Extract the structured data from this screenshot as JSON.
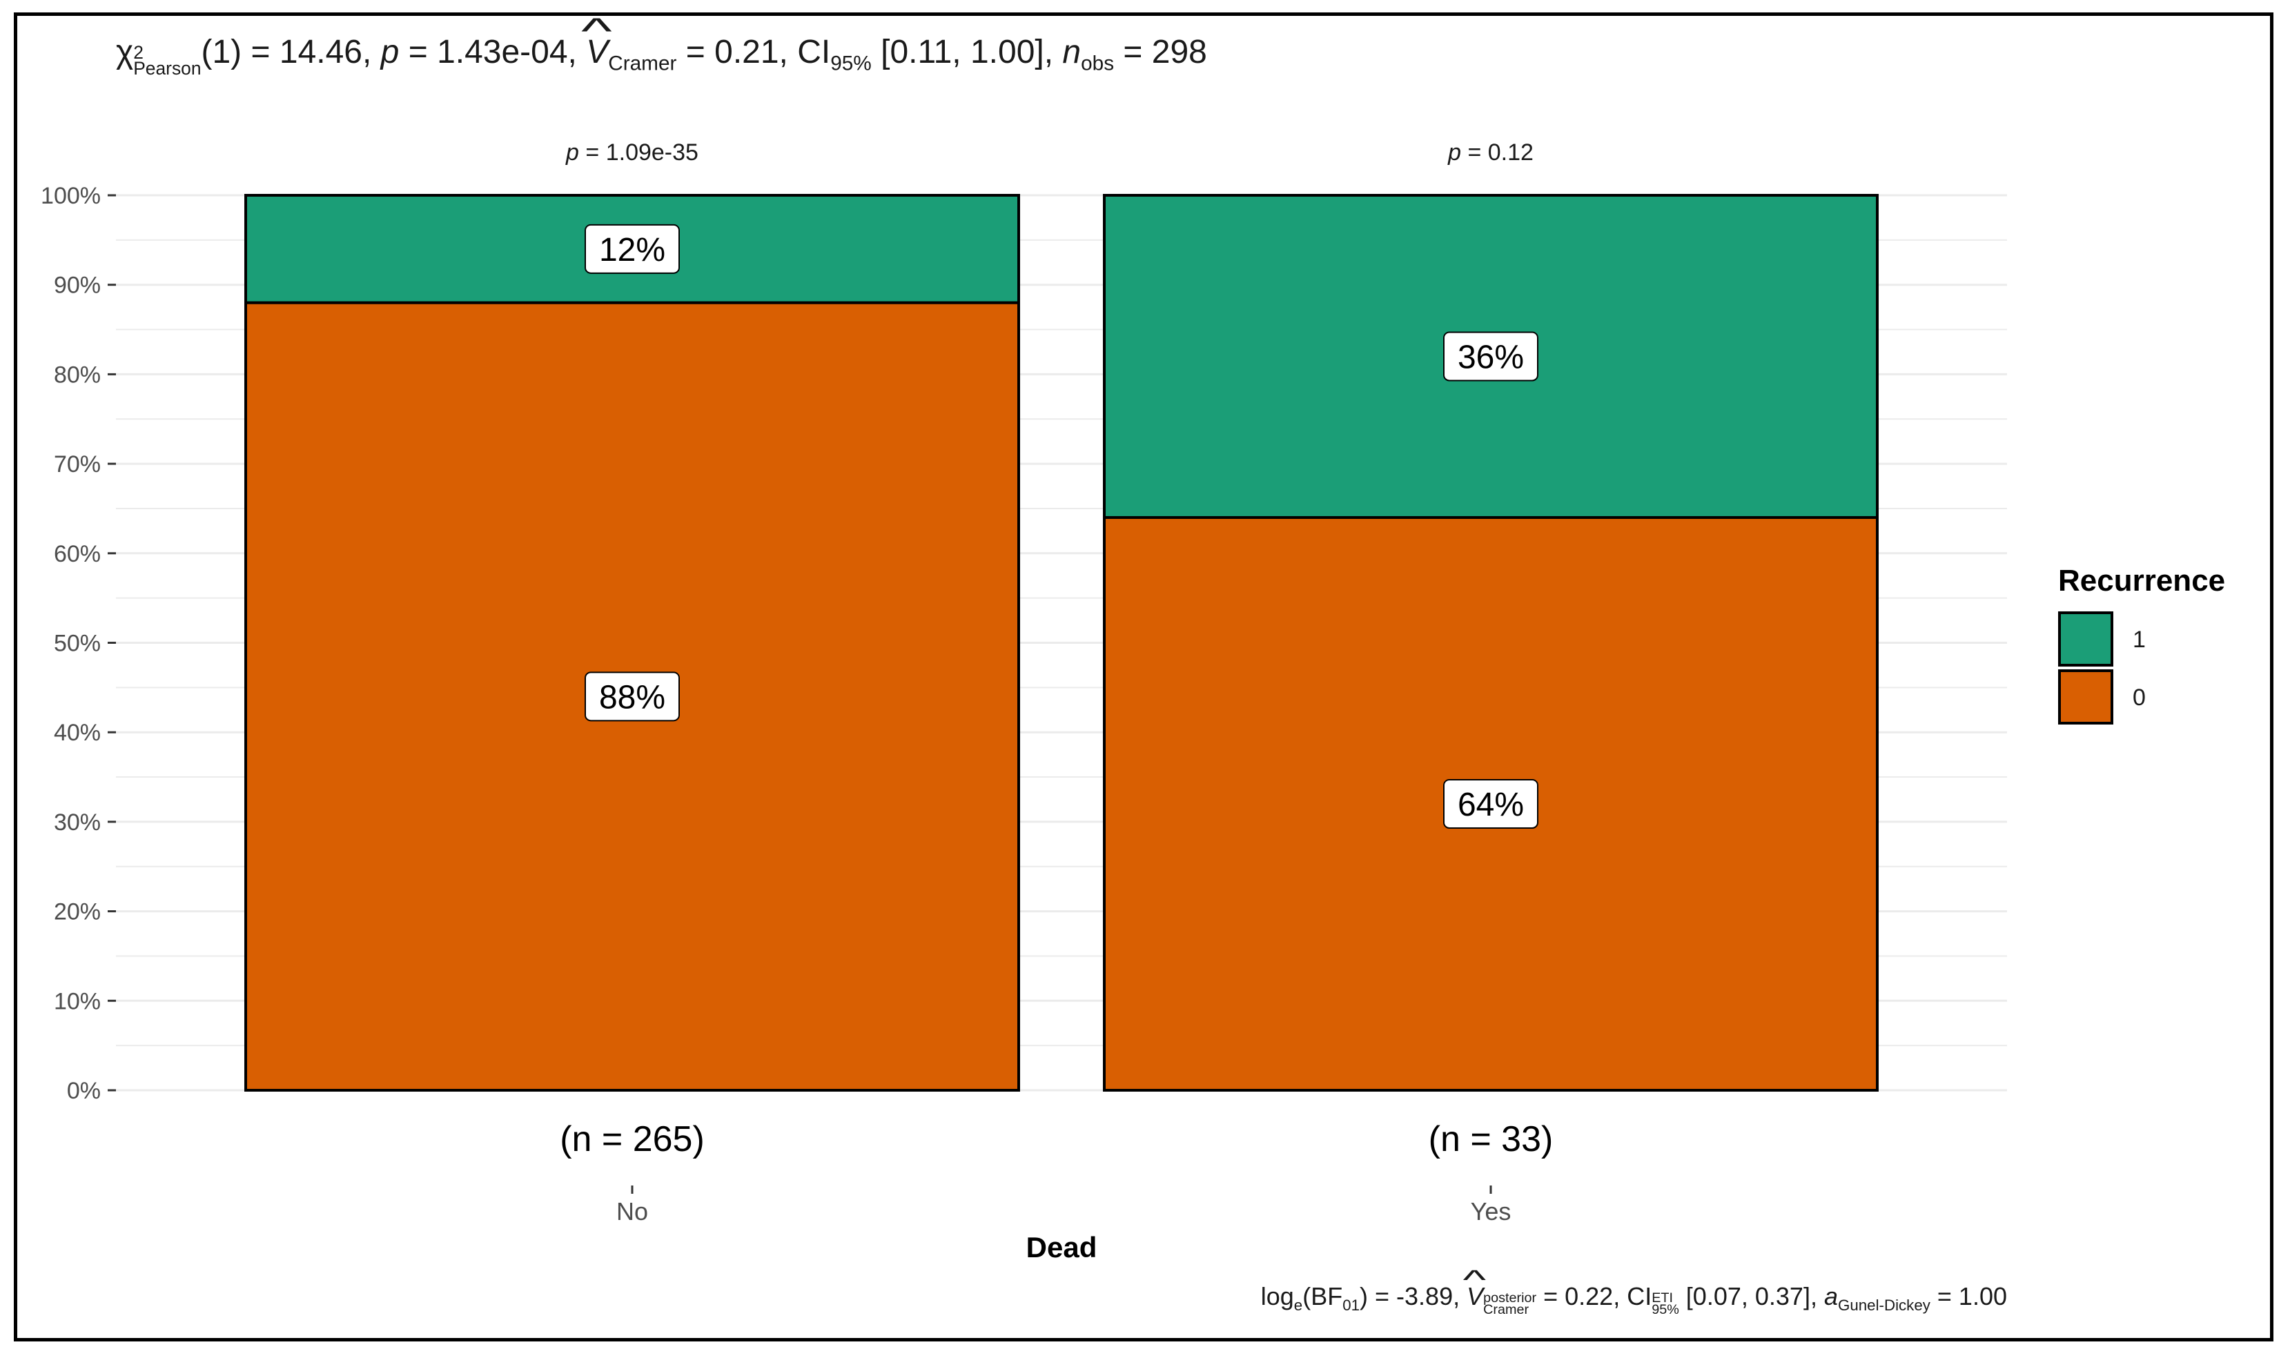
{
  "chart_data": {
    "type": "bar",
    "stacked": true,
    "percent": true,
    "categories": [
      "No",
      "Yes"
    ],
    "counts_labels": [
      "(n = 265)",
      "(n = 33)"
    ],
    "top_labels": [
      "p = 1.09e-35",
      "p = 0.12"
    ],
    "series": [
      {
        "name": "0",
        "values": [
          88,
          64
        ],
        "labels": [
          "88%",
          "64%"
        ]
      },
      {
        "name": "1",
        "values": [
          12,
          36
        ],
        "labels": [
          "12%",
          "36%"
        ]
      }
    ],
    "xlabel": "Dead",
    "ylabel": "",
    "ylim": [
      0,
      100
    ],
    "yticks": [
      "0%",
      "10%",
      "20%",
      "30%",
      "40%",
      "50%",
      "60%",
      "70%",
      "80%",
      "90%",
      "100%"
    ],
    "legend": {
      "title": "Recurrence",
      "position": "right",
      "entries": [
        "1",
        "0"
      ]
    },
    "grid": true,
    "colors": {
      "series_1": "#1b9e77",
      "series_0": "#d95f02",
      "grid": "#ebebeb"
    }
  },
  "subtitle": {
    "chi": "χ",
    "chi_sup": "2",
    "chi_sub": "Pearson",
    "df_stat": "(1) = 14.46, ",
    "p_sym": "p",
    "p_val": " = 1.43e-04, ",
    "v_sym": "V",
    "v_sub": "Cramer",
    "v_val": " = 0.21, CI",
    "ci_sub": "95%",
    "ci_val": " [0.11, 1.00], ",
    "n_sym": "n",
    "n_sub": "obs",
    "n_val": " = 298"
  },
  "caption": {
    "log": "log",
    "log_sub": "e",
    "bf": "(BF",
    "bf_sub": "01",
    "bf_val": ") = -3.89, ",
    "v_sym": "V",
    "v_sup": "posterior",
    "v_sub": "Cramer",
    "v_val": " = 0.22, CI",
    "ci_sup": "ETI",
    "ci_sub": "95%",
    "ci_val": " [0.07, 0.37], ",
    "a_sym": "a",
    "a_sub": "Gunel-Dickey",
    "a_val": " = 1.00"
  }
}
